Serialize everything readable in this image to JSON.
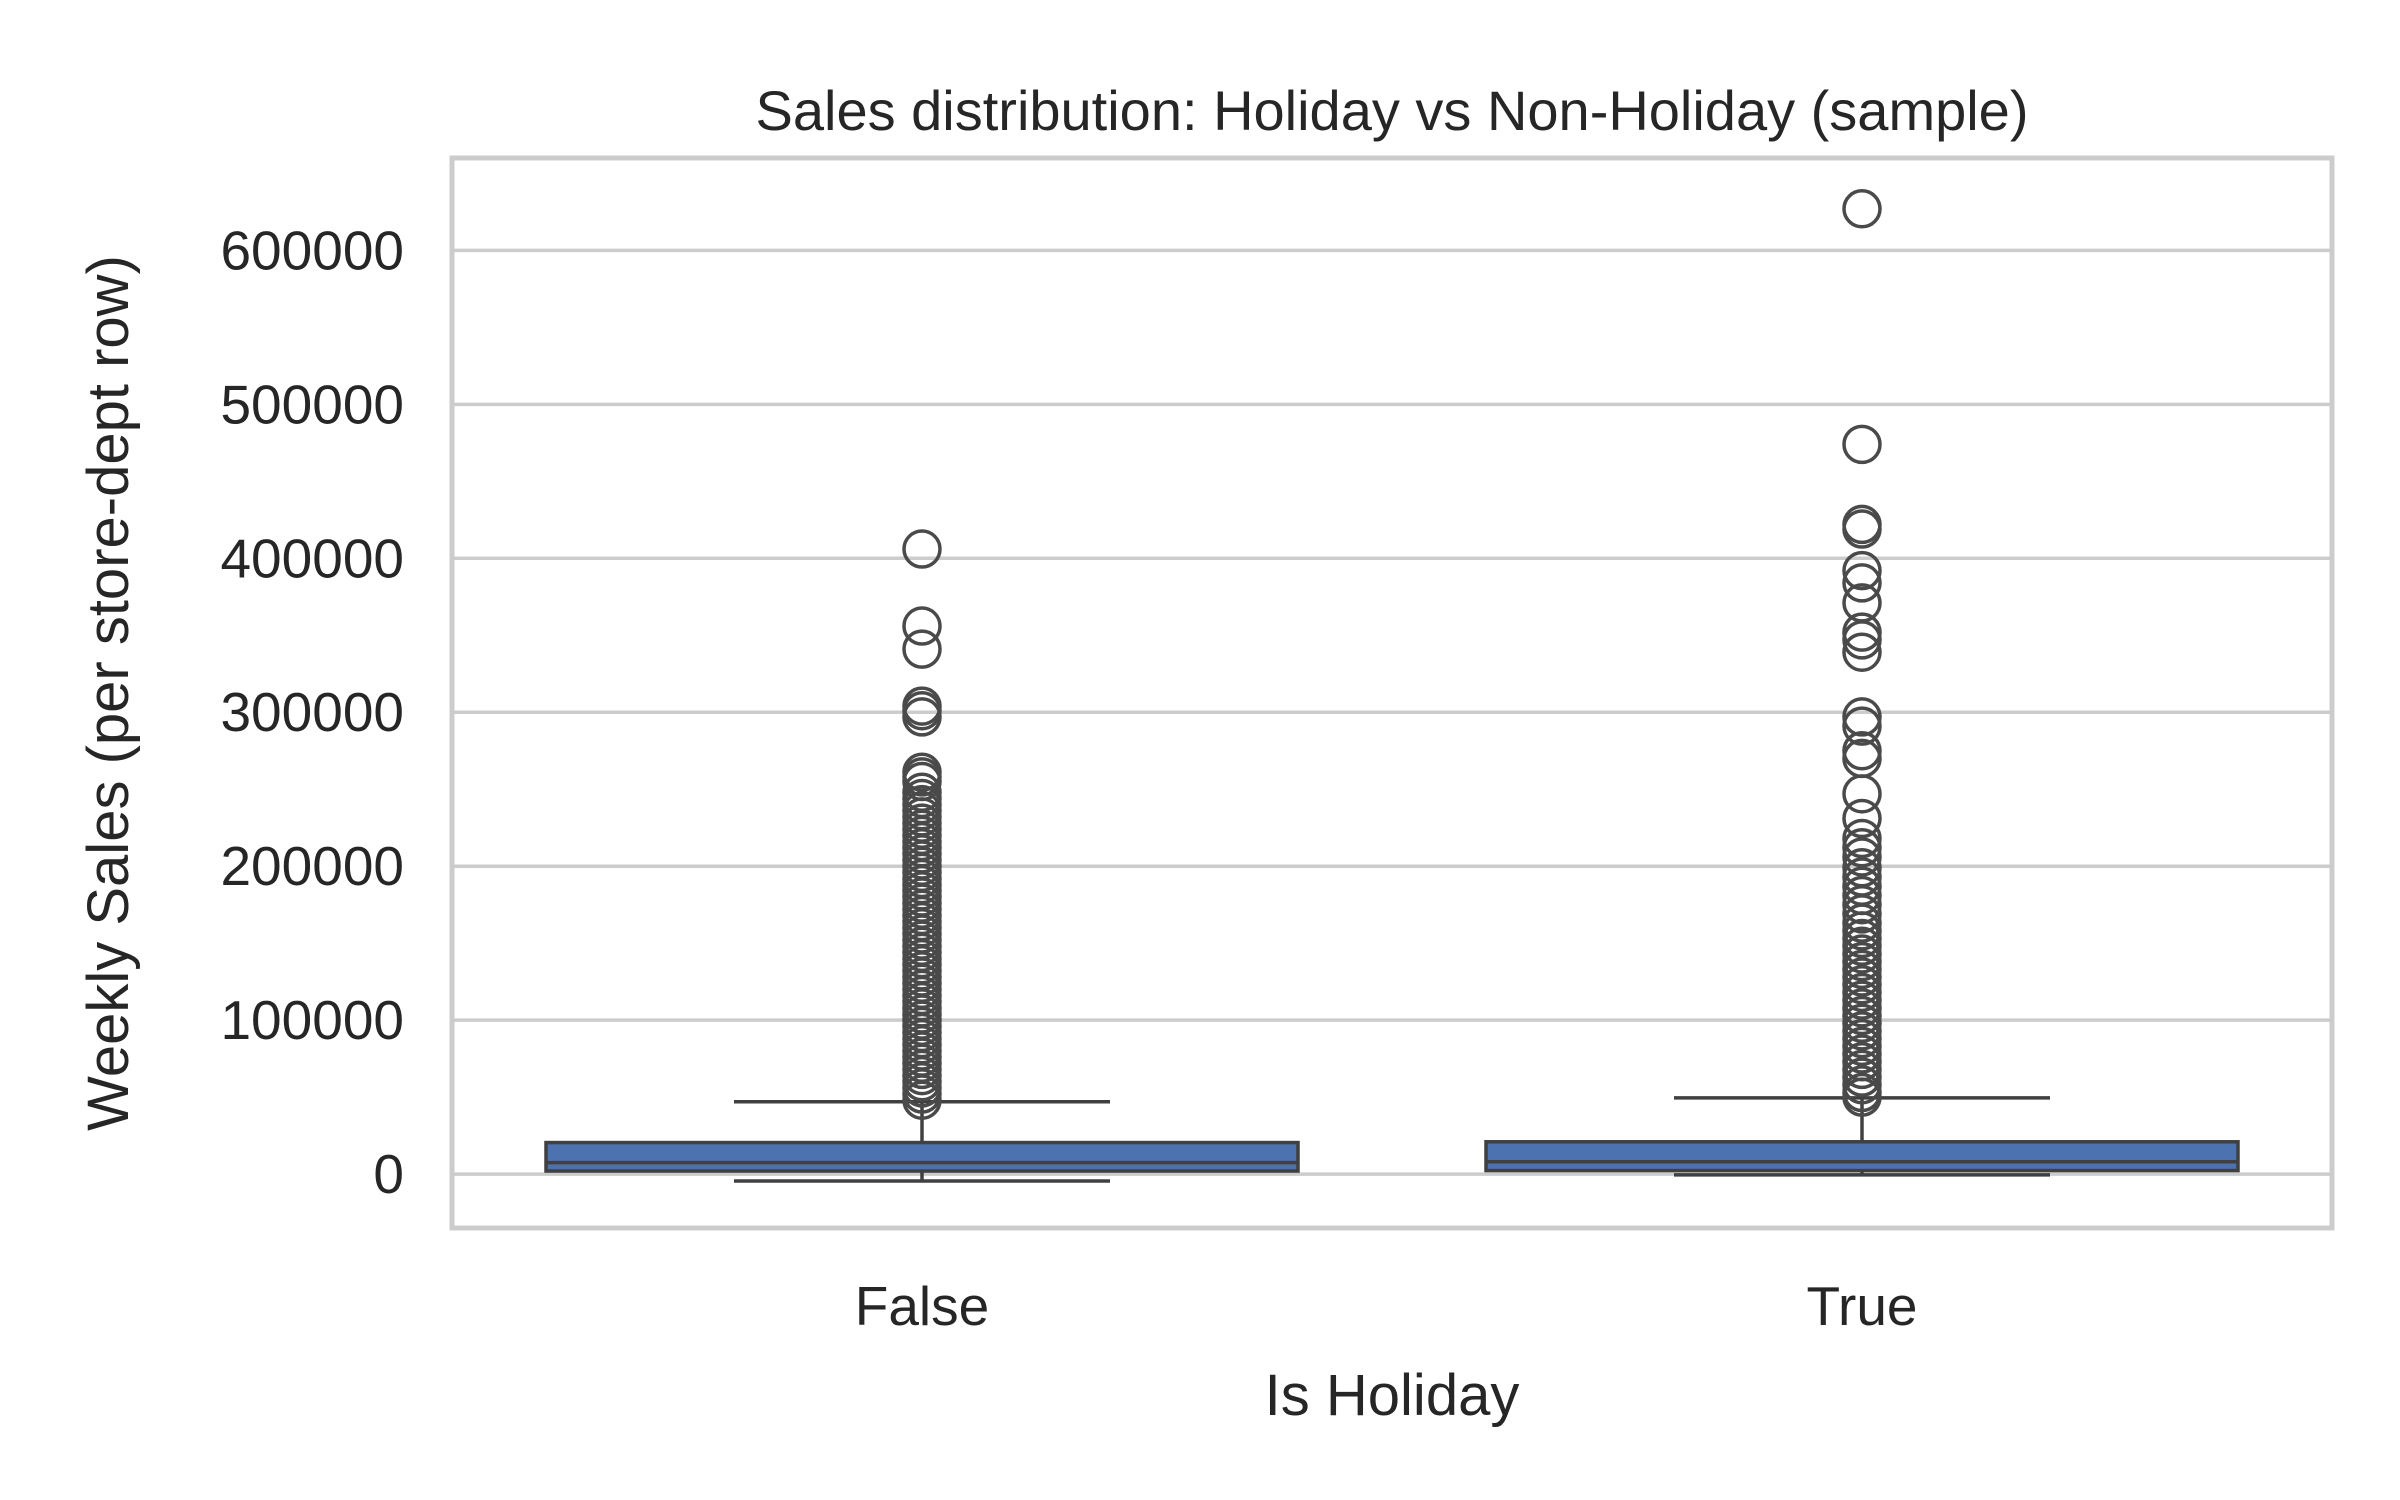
{
  "chart_data": {
    "type": "box",
    "title": "Sales distribution: Holiday vs Non-Holiday (sample)",
    "xlabel": "Is Holiday",
    "ylabel": "Weekly Sales (per store-dept row)",
    "categories": [
      "False",
      "True"
    ],
    "y_ticks": [
      0,
      100000,
      200000,
      300000,
      400000,
      500000,
      600000
    ],
    "ylim": [
      -35000,
      660000
    ],
    "grid": true,
    "colors": {
      "box": "#4c72b0",
      "line": "#404040",
      "grid": "#cccccc",
      "frame": "#cccccc"
    },
    "boxes": [
      {
        "category": "False",
        "whisker_low": -4500,
        "q1": 2000,
        "median": 7500,
        "q3": 20500,
        "whisker_high": 47000,
        "outliers": [
          406000,
          356000,
          341000,
          304000,
          301000,
          297000,
          261000,
          258000,
          255000,
          248000,
          244000,
          240000,
          236000,
          232000,
          228000,
          224000,
          220000,
          216000,
          212000,
          208000,
          204000,
          200000,
          196000,
          192000,
          188000,
          184000,
          180000,
          176000,
          172000,
          168000,
          164000,
          160000,
          156000,
          152000,
          148000,
          144000,
          140000,
          136000,
          132000,
          128000,
          124000,
          120000,
          116000,
          112000,
          108000,
          104000,
          100000,
          96000,
          92000,
          88000,
          84000,
          80000,
          76000,
          72000,
          68000,
          64000,
          60000,
          56000,
          52000,
          48000
        ]
      },
      {
        "category": "True",
        "whisker_low": -500,
        "q1": 2300,
        "median": 8000,
        "q3": 21000,
        "whisker_high": 49500,
        "outliers": [
          627000,
          474000,
          422000,
          419000,
          392000,
          384000,
          371000,
          352000,
          347000,
          339000,
          297000,
          291000,
          275000,
          270000,
          247000,
          231000,
          218000,
          212000,
          206000,
          199000,
          193000,
          187000,
          181000,
          175000,
          169000,
          163000,
          158000,
          153000,
          148000,
          143000,
          138000,
          133000,
          128000,
          123000,
          118000,
          113000,
          108000,
          103000,
          98000,
          93000,
          88000,
          83000,
          78000,
          73000,
          68000,
          63000,
          58000,
          53000,
          50000
        ]
      }
    ]
  }
}
